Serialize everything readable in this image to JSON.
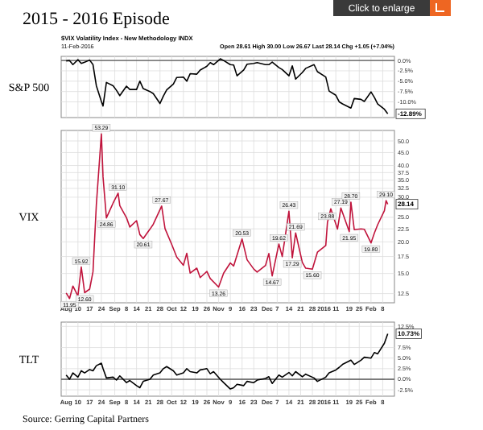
{
  "chart_data": [
    {
      "type": "line",
      "title": "2015 - 2016 Episode",
      "subtitle": "$VIX Volatility Index - New Methodology INDX",
      "ylabel": "S&P 500",
      "annotations": [
        "11-Feb-2016",
        "Open 28.61 High 30.00 Low 26.67 Last 28.14 Chg +1.05 (+7.04%)",
        "Click to enlarge",
        {
          "text": "-12.89%",
          "x": "2016-02-11",
          "y": -12.89
        }
      ],
      "xlim": [
        "2015-07-31",
        "2016-02-15"
      ],
      "ylim": [
        -13.8,
        1.0
      ],
      "xticks": [
        {
          "value": "2015-08-03",
          "label": null
        },
        {
          "value": "2015-08-10",
          "label": null
        },
        {
          "value": "2015-08-17",
          "label": null
        },
        {
          "value": "2015-08-24",
          "label": null
        },
        {
          "value": "2015-09-01",
          "label": null
        },
        {
          "value": "2015-09-08",
          "label": null
        },
        {
          "value": "2015-09-14",
          "label": null
        },
        {
          "value": "2015-09-21",
          "label": null
        },
        {
          "value": "2015-09-28",
          "label": null
        },
        {
          "value": "2015-10-05",
          "label": null
        },
        {
          "value": "2015-10-12",
          "label": null
        },
        {
          "value": "2015-10-19",
          "label": null
        },
        {
          "value": "2015-10-26",
          "label": null
        },
        {
          "value": "2015-11-02",
          "label": null
        },
        {
          "value": "2015-11-09",
          "label": null
        },
        {
          "value": "2015-11-16",
          "label": null
        },
        {
          "value": "2015-11-23",
          "label": null
        },
        {
          "value": "2015-12-01",
          "label": null
        },
        {
          "value": "2015-12-07",
          "label": null
        },
        {
          "value": "2015-12-14",
          "label": null
        },
        {
          "value": "2015-12-21",
          "label": null
        },
        {
          "value": "2015-12-28",
          "label": null
        },
        {
          "value": "2016-01-04",
          "label": null
        },
        {
          "value": "2016-01-11",
          "label": null
        },
        {
          "value": "2016-01-19",
          "label": null
        },
        {
          "value": "2016-01-25",
          "label": null
        },
        {
          "value": "2016-02-01",
          "label": null
        },
        {
          "value": "2016-02-08",
          "label": null
        }
      ],
      "yticks": [
        {
          "value": 0,
          "label": "0.0%"
        },
        {
          "value": -2.5,
          "label": "-2.5%"
        },
        {
          "value": -5,
          "label": "-5.0%"
        },
        {
          "value": -7.5,
          "label": "-7.5%"
        },
        {
          "value": -10,
          "label": "-10.0%"
        }
      ],
      "tick_labels": "y",
      "grid": true,
      "ref_lines": [
        {
          "axis": "y",
          "value": 0,
          "color": "#555555"
        }
      ],
      "series": [
        {
          "color": "#000000",
          "x": [
            "2015-08-03",
            "2015-08-05",
            "2015-08-07",
            "2015-08-10",
            "2015-08-12",
            "2015-08-14",
            "2015-08-17",
            "2015-08-19",
            "2015-08-21",
            "2015-08-24",
            "2015-08-25",
            "2015-08-27",
            "2015-08-31",
            "2015-09-02",
            "2015-09-04",
            "2015-09-08",
            "2015-09-10",
            "2015-09-14",
            "2015-09-16",
            "2015-09-18",
            "2015-09-22",
            "2015-09-24",
            "2015-09-28",
            "2015-09-30",
            "2015-10-02",
            "2015-10-06",
            "2015-10-08",
            "2015-10-12",
            "2015-10-14",
            "2015-10-16",
            "2015-10-20",
            "2015-10-22",
            "2015-10-26",
            "2015-10-28",
            "2015-10-30",
            "2015-11-03",
            "2015-11-05",
            "2015-11-09",
            "2015-11-11",
            "2015-11-13",
            "2015-11-17",
            "2015-11-19",
            "2015-11-23",
            "2015-11-25",
            "2015-11-30",
            "2015-12-02",
            "2015-12-04",
            "2015-12-08",
            "2015-12-10",
            "2015-12-14",
            "2015-12-16",
            "2015-12-18",
            "2015-12-22",
            "2015-12-24",
            "2015-12-29",
            "2015-12-31",
            "2016-01-05",
            "2016-01-07",
            "2016-01-11",
            "2016-01-13",
            "2016-01-15",
            "2016-01-20",
            "2016-01-22",
            "2016-01-26",
            "2016-01-28",
            "2016-02-01",
            "2016-02-03",
            "2016-02-05",
            "2016-02-09",
            "2016-02-11"
          ],
          "values": [
            -0.1,
            0.0,
            -1.0,
            0.2,
            -0.7,
            -0.4,
            0.1,
            -1.0,
            -6.1,
            -9.9,
            -11.0,
            -5.3,
            -6.1,
            -7.2,
            -8.5,
            -6.2,
            -7.0,
            -7.0,
            -5.0,
            -6.8,
            -7.5,
            -8.0,
            -10.4,
            -8.6,
            -7.1,
            -5.7,
            -4.1,
            -4.0,
            -5.0,
            -3.2,
            -3.3,
            -2.3,
            -1.4,
            -0.5,
            -1.0,
            0.4,
            0.0,
            -1.0,
            -1.1,
            -3.7,
            -2.3,
            -0.9,
            -0.7,
            -0.5,
            -1.0,
            -1.0,
            -0.4,
            -1.7,
            -2.2,
            -3.7,
            -1.3,
            -4.5,
            -2.9,
            -1.9,
            -1.0,
            -2.7,
            -4.0,
            -7.4,
            -8.4,
            -10.0,
            -10.5,
            -11.5,
            -9.2,
            -9.4,
            -9.9,
            -7.6,
            -8.9,
            -10.5,
            -11.8,
            -12.89
          ]
        }
      ]
    },
    {
      "type": "line",
      "ylabel": "VIX",
      "log": true,
      "xlim": [
        "2015-07-31",
        "2016-02-15"
      ],
      "ylim": [
        11.5,
        55
      ],
      "xticks": [
        {
          "value": "2015-08-03",
          "label": "Aug"
        },
        {
          "value": "2015-08-10",
          "label": "10"
        },
        {
          "value": "2015-08-17",
          "label": "17"
        },
        {
          "value": "2015-08-24",
          "label": "24"
        },
        {
          "value": "2015-09-01",
          "label": "Sep"
        },
        {
          "value": "2015-09-08",
          "label": "8"
        },
        {
          "value": "2015-09-14",
          "label": "14"
        },
        {
          "value": "2015-09-21",
          "label": "21"
        },
        {
          "value": "2015-09-28",
          "label": "28"
        },
        {
          "value": "2015-10-05",
          "label": "Oct"
        },
        {
          "value": "2015-10-12",
          "label": "12"
        },
        {
          "value": "2015-10-19",
          "label": "19"
        },
        {
          "value": "2015-10-26",
          "label": "26"
        },
        {
          "value": "2015-11-02",
          "label": "Nov"
        },
        {
          "value": "2015-11-09",
          "label": "9"
        },
        {
          "value": "2015-11-16",
          "label": "16"
        },
        {
          "value": "2015-11-23",
          "label": "23"
        },
        {
          "value": "2015-12-01",
          "label": "Dec"
        },
        {
          "value": "2015-12-07",
          "label": "7"
        },
        {
          "value": "2015-12-14",
          "label": "14"
        },
        {
          "value": "2015-12-21",
          "label": "21"
        },
        {
          "value": "2015-12-28",
          "label": "28"
        },
        {
          "value": "2016-01-04",
          "label": "2016"
        },
        {
          "value": "2016-01-11",
          "label": "11"
        },
        {
          "value": "2016-01-19",
          "label": "19"
        },
        {
          "value": "2016-01-25",
          "label": "25"
        },
        {
          "value": "2016-02-01",
          "label": "Feb"
        },
        {
          "value": "2016-02-08",
          "label": "8"
        }
      ],
      "yticks": [
        {
          "value": 12.5,
          "label": "12.5"
        },
        {
          "value": 15,
          "label": "15.0"
        },
        {
          "value": 17.5,
          "label": "17.5"
        },
        {
          "value": 20,
          "label": "20.0"
        },
        {
          "value": 22.5,
          "label": "22.5"
        },
        {
          "value": 25,
          "label": "25.0"
        },
        {
          "value": 30,
          "label": "30.0"
        },
        {
          "value": 32.5,
          "label": "32.5"
        },
        {
          "value": 35,
          "label": "35.0"
        },
        {
          "value": 37.5,
          "label": "37.5"
        },
        {
          "value": 40,
          "label": "40.0"
        },
        {
          "value": 45,
          "label": "45.0"
        },
        {
          "value": 50,
          "label": "50.0"
        }
      ],
      "grid": true,
      "annotations": [
        {
          "text": "11.95",
          "x": "2015-08-05",
          "y": 11.95
        },
        {
          "text": "15.92",
          "x": "2015-08-12",
          "y": 15.92
        },
        {
          "text": "12.60",
          "x": "2015-08-14",
          "y": 12.6
        },
        {
          "text": "53.29",
          "x": "2015-08-24",
          "y": 53.29
        },
        {
          "text": "24.86",
          "x": "2015-08-27",
          "y": 24.86
        },
        {
          "text": "31.10",
          "x": "2015-09-03",
          "y": 31.1
        },
        {
          "text": "20.61",
          "x": "2015-09-18",
          "y": 20.61
        },
        {
          "text": "27.67",
          "x": "2015-09-29",
          "y": 27.67
        },
        {
          "text": "13.26",
          "x": "2015-11-02",
          "y": 13.26
        },
        {
          "text": "20.53",
          "x": "2015-11-16",
          "y": 20.53
        },
        {
          "text": "14.67",
          "x": "2015-12-04",
          "y": 14.67
        },
        {
          "text": "19.62",
          "x": "2015-12-08",
          "y": 19.62
        },
        {
          "text": "26.43",
          "x": "2015-12-14",
          "y": 26.43
        },
        {
          "text": "17.29",
          "x": "2015-12-16",
          "y": 17.29
        },
        {
          "text": "21.69",
          "x": "2015-12-18",
          "y": 21.69
        },
        {
          "text": "15.60",
          "x": "2015-12-28",
          "y": 15.6
        },
        {
          "text": "23.88",
          "x": "2016-01-06",
          "y": 23.88
        },
        {
          "text": "27.19",
          "x": "2016-01-14",
          "y": 27.19
        },
        {
          "text": "21.95",
          "x": "2016-01-19",
          "y": 21.95
        },
        {
          "text": "28.70",
          "x": "2016-01-20",
          "y": 28.7
        },
        {
          "text": "19.80",
          "x": "2016-02-01",
          "y": 19.8
        },
        {
          "text": "29.10",
          "x": "2016-02-10",
          "y": 29.1
        },
        {
          "text": "28.14",
          "x": "2016-02-11",
          "y": 28.14
        }
      ],
      "series": [
        {
          "color": "#c0143c",
          "x": [
            "2015-08-03",
            "2015-08-05",
            "2015-08-07",
            "2015-08-10",
            "2015-08-12",
            "2015-08-14",
            "2015-08-17",
            "2015-08-19",
            "2015-08-21",
            "2015-08-24",
            "2015-08-25",
            "2015-08-27",
            "2015-08-31",
            "2015-09-03",
            "2015-09-04",
            "2015-09-08",
            "2015-09-10",
            "2015-09-14",
            "2015-09-16",
            "2015-09-18",
            "2015-09-22",
            "2015-09-24",
            "2015-09-29",
            "2015-10-01",
            "2015-10-05",
            "2015-10-08",
            "2015-10-12",
            "2015-10-14",
            "2015-10-16",
            "2015-10-20",
            "2015-10-22",
            "2015-10-26",
            "2015-10-28",
            "2015-11-02",
            "2015-11-05",
            "2015-11-09",
            "2015-11-11",
            "2015-11-16",
            "2015-11-19",
            "2015-11-23",
            "2015-11-25",
            "2015-11-30",
            "2015-12-02",
            "2015-12-04",
            "2015-12-08",
            "2015-12-10",
            "2015-12-14",
            "2015-12-16",
            "2015-12-18",
            "2015-12-22",
            "2015-12-24",
            "2015-12-28",
            "2015-12-31",
            "2016-01-05",
            "2016-01-06",
            "2016-01-08",
            "2016-01-12",
            "2016-01-14",
            "2016-01-19",
            "2016-01-20",
            "2016-01-22",
            "2016-01-26",
            "2016-01-28",
            "2016-02-01",
            "2016-02-03",
            "2016-02-05",
            "2016-02-09",
            "2016-02-10",
            "2016-02-11"
          ],
          "values": [
            12.56,
            11.95,
            13.39,
            12.23,
            15.92,
            12.6,
            13.02,
            15.25,
            28.03,
            53.29,
            36.02,
            24.86,
            28.43,
            31.1,
            27.8,
            24.9,
            22.88,
            24.25,
            21.35,
            20.61,
            22.44,
            23.47,
            27.67,
            22.55,
            19.54,
            17.42,
            16.17,
            18.03,
            15.05,
            15.75,
            14.45,
            15.29,
            14.33,
            13.26,
            15.05,
            16.52,
            16.06,
            20.53,
            16.99,
            15.62,
            15.19,
            16.13,
            17.98,
            14.67,
            19.62,
            17.5,
            26.43,
            17.29,
            21.69,
            16.6,
            15.74,
            15.6,
            18.21,
            19.34,
            23.88,
            27.01,
            22.47,
            27.19,
            21.95,
            28.7,
            22.34,
            22.5,
            22.42,
            19.8,
            21.65,
            23.38,
            26.54,
            29.1,
            28.14
          ]
        }
      ]
    },
    {
      "type": "line",
      "ylabel": "TLT",
      "xlim": [
        "2015-07-31",
        "2016-02-15"
      ],
      "ylim": [
        -4,
        13.5
      ],
      "xticks": [
        {
          "value": "2015-08-03",
          "label": "Aug"
        },
        {
          "value": "2015-08-10",
          "label": "10"
        },
        {
          "value": "2015-08-17",
          "label": "17"
        },
        {
          "value": "2015-08-24",
          "label": "24"
        },
        {
          "value": "2015-09-01",
          "label": "Sep"
        },
        {
          "value": "2015-09-08",
          "label": "8"
        },
        {
          "value": "2015-09-14",
          "label": "14"
        },
        {
          "value": "2015-09-21",
          "label": "21"
        },
        {
          "value": "2015-09-28",
          "label": "28"
        },
        {
          "value": "2015-10-05",
          "label": "Oct"
        },
        {
          "value": "2015-10-12",
          "label": "12"
        },
        {
          "value": "2015-10-19",
          "label": "19"
        },
        {
          "value": "2015-10-26",
          "label": "26"
        },
        {
          "value": "2015-11-02",
          "label": "Nov"
        },
        {
          "value": "2015-11-09",
          "label": "9"
        },
        {
          "value": "2015-11-16",
          "label": "16"
        },
        {
          "value": "2015-11-23",
          "label": "23"
        },
        {
          "value": "2015-12-01",
          "label": "Dec"
        },
        {
          "value": "2015-12-07",
          "label": "7"
        },
        {
          "value": "2015-12-14",
          "label": "14"
        },
        {
          "value": "2015-12-21",
          "label": "21"
        },
        {
          "value": "2015-12-28",
          "label": "28"
        },
        {
          "value": "2016-01-04",
          "label": "2016"
        },
        {
          "value": "2016-01-11",
          "label": "11"
        },
        {
          "value": "2016-01-19",
          "label": "19"
        },
        {
          "value": "2016-01-25",
          "label": "25"
        },
        {
          "value": "2016-02-01",
          "label": "Feb"
        },
        {
          "value": "2016-02-08",
          "label": "8"
        }
      ],
      "yticks": [
        {
          "value": 12.5,
          "label": "12.5%"
        },
        {
          "value": 7.5,
          "label": "7.5%"
        },
        {
          "value": 5,
          "label": "5.0%"
        },
        {
          "value": 2.5,
          "label": "2.5%"
        },
        {
          "value": 0,
          "label": "0.0%"
        },
        {
          "value": -2.5,
          "label": "-2.5%"
        }
      ],
      "grid": true,
      "ref_lines": [
        {
          "axis": "y",
          "value": 0,
          "color": "#555555"
        }
      ],
      "annotations": [
        {
          "text": "10.73%",
          "x": "2016-02-11",
          "y": 10.73
        },
        "Source: Gerring Capital Partners"
      ],
      "series": [
        {
          "color": "#000000",
          "x": [
            "2015-08-03",
            "2015-08-05",
            "2015-08-07",
            "2015-08-10",
            "2015-08-12",
            "2015-08-14",
            "2015-08-17",
            "2015-08-19",
            "2015-08-21",
            "2015-08-24",
            "2015-08-25",
            "2015-08-27",
            "2015-08-31",
            "2015-09-02",
            "2015-09-04",
            "2015-09-08",
            "2015-09-10",
            "2015-09-14",
            "2015-09-16",
            "2015-09-18",
            "2015-09-22",
            "2015-09-24",
            "2015-09-28",
            "2015-09-30",
            "2015-10-02",
            "2015-10-06",
            "2015-10-08",
            "2015-10-12",
            "2015-10-14",
            "2015-10-16",
            "2015-10-20",
            "2015-10-22",
            "2015-10-26",
            "2015-10-28",
            "2015-10-30",
            "2015-11-03",
            "2015-11-05",
            "2015-11-09",
            "2015-11-11",
            "2015-11-13",
            "2015-11-17",
            "2015-11-19",
            "2015-11-23",
            "2015-11-25",
            "2015-11-30",
            "2015-12-02",
            "2015-12-04",
            "2015-12-08",
            "2015-12-10",
            "2015-12-14",
            "2015-12-16",
            "2015-12-18",
            "2015-12-22",
            "2015-12-24",
            "2015-12-29",
            "2015-12-31",
            "2016-01-05",
            "2016-01-07",
            "2016-01-11",
            "2016-01-13",
            "2016-01-15",
            "2016-01-20",
            "2016-01-22",
            "2016-01-26",
            "2016-01-28",
            "2016-02-01",
            "2016-02-03",
            "2016-02-05",
            "2016-02-09",
            "2016-02-11"
          ],
          "values": [
            1.0,
            0.0,
            1.5,
            0.5,
            2.0,
            1.5,
            2.3,
            2.0,
            3.2,
            3.8,
            2.5,
            0.3,
            0.5,
            -0.2,
            0.8,
            -0.8,
            -0.3,
            -1.5,
            -2.0,
            -0.5,
            0.0,
            1.0,
            1.5,
            2.5,
            3.0,
            2.0,
            1.0,
            1.5,
            2.5,
            1.8,
            1.5,
            2.2,
            2.5,
            1.3,
            1.8,
            0.0,
            -0.8,
            -2.3,
            -2.0,
            -1.2,
            -1.5,
            -0.5,
            -0.8,
            -0.2,
            0.2,
            0.6,
            -1.0,
            1.0,
            0.5,
            1.6,
            0.8,
            1.8,
            0.6,
            1.2,
            0.3,
            -0.5,
            0.5,
            1.5,
            2.2,
            2.8,
            3.5,
            4.5,
            3.5,
            4.5,
            5.2,
            5.0,
            6.3,
            6.0,
            8.5,
            10.73
          ]
        }
      ]
    }
  ]
}
